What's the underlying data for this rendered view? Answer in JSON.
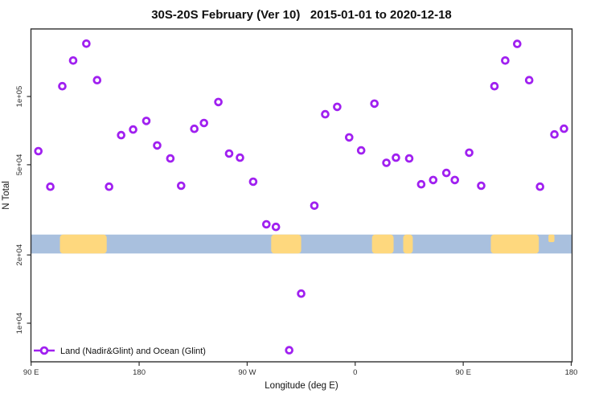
{
  "title": "30S-20S February (Ver 10)   2015-01-01 to 2020-12-18",
  "colors": {
    "point": "#A020F0",
    "ocean": "#A9C0DE",
    "land": "#FED87E",
    "axis": "#2F2F2F",
    "background": "#FFFFFF"
  },
  "chart_data": {
    "type": "scatter",
    "title": "30S-20S February (Ver 10)   2015-01-01 to 2020-12-18",
    "xlabel": "Longitude (deg E)",
    "ylabel": "N Total",
    "grid": false,
    "legend_position": "bottom-left",
    "x_axis": {
      "lim": [
        89.5,
        541
      ],
      "note": "longitude increases eastward and wraps past 360",
      "ticks": [
        {
          "value": 90,
          "label": "90 E"
        },
        {
          "value": 180,
          "label": "180"
        },
        {
          "value": 270,
          "label": "90 W"
        },
        {
          "value": 360,
          "label": "0"
        },
        {
          "value": 450,
          "label": "90 E"
        },
        {
          "value": 540,
          "label": "180"
        }
      ]
    },
    "y_axis": {
      "scale": "log10",
      "lim": [
        6800,
        199000
      ],
      "ticks": [
        {
          "value": 100000,
          "label": "1e+05"
        },
        {
          "value": 50000,
          "label": "5e+04"
        },
        {
          "value": 20000,
          "label": "2e+04"
        },
        {
          "value": 10000,
          "label": "1e+04"
        }
      ]
    },
    "map_band": {
      "n_top": 24600,
      "n_bottom": 20300,
      "ocean_color": "#A9C0DE",
      "land_color": "#FED87E",
      "land_segments_deg": [
        [
          114,
          153
        ],
        [
          290,
          315
        ],
        [
          374,
          392
        ],
        [
          400,
          408
        ],
        [
          473,
          513
        ]
      ],
      "island_segments_deg": [
        [
          521,
          526
        ]
      ]
    },
    "legend": {
      "label": "Land (Nadir&Glint) and Ocean (Glint)"
    },
    "series": [
      {
        "name": "Land (Nadir&Glint) and Ocean (Glint)",
        "color": "#A020F0",
        "marker": "open-circle",
        "points": [
          [
            136,
            171000
          ],
          [
            125,
            144000
          ],
          [
            145,
            118000
          ],
          [
            116,
            111000
          ],
          [
            186,
            78000
          ],
          [
            175,
            71500
          ],
          [
            165,
            67500
          ],
          [
            226,
            72000
          ],
          [
            234,
            76400
          ],
          [
            195,
            60800
          ],
          [
            96,
            57400
          ],
          [
            206,
            53300
          ],
          [
            106,
            40000
          ],
          [
            155,
            40000
          ],
          [
            215,
            40400
          ],
          [
            246,
            94500
          ],
          [
            335,
            83500
          ],
          [
            345,
            90000
          ],
          [
            376,
            93000
          ],
          [
            355,
            66000
          ],
          [
            365,
            57800
          ],
          [
            386,
            51000
          ],
          [
            255,
            56000
          ],
          [
            264,
            53700
          ],
          [
            275,
            42100
          ],
          [
            326,
            33000
          ],
          [
            286,
            27300
          ],
          [
            294,
            26600
          ],
          [
            495,
            170600
          ],
          [
            485,
            144000
          ],
          [
            505,
            118000
          ],
          [
            476,
            111000
          ],
          [
            534,
            72100
          ],
          [
            526,
            68000
          ],
          [
            455,
            56500
          ],
          [
            394,
            53700
          ],
          [
            405,
            53300
          ],
          [
            436,
            46000
          ],
          [
            425,
            42800
          ],
          [
            443,
            42800
          ],
          [
            415,
            41000
          ],
          [
            465,
            40400
          ],
          [
            514,
            40000
          ],
          [
            315,
            13500
          ],
          [
            305,
            7600
          ]
        ]
      }
    ]
  }
}
